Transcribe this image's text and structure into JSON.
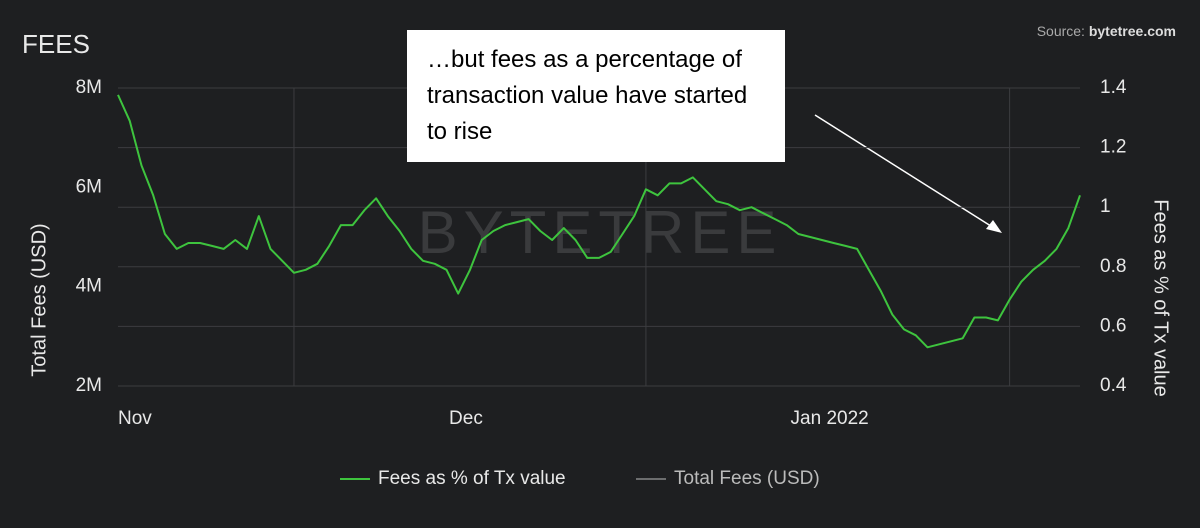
{
  "chart_data": {
    "type": "line",
    "title": "FEES",
    "source_label": "Source:",
    "source_site": "bytetree.com",
    "watermark": "BYTETREE",
    "annotation": "…but fees as a percentage of transaction value have started to rise",
    "ylabel": "Total Fees (USD)",
    "y2label": "Fees as % of Tx value",
    "x": [
      0,
      1,
      2,
      3,
      4,
      5,
      6,
      7,
      8,
      9,
      10,
      11,
      12,
      13,
      14,
      15,
      16,
      17,
      18,
      19,
      20,
      21,
      22,
      23,
      24,
      25,
      26,
      27,
      28,
      29,
      30,
      31,
      32,
      33,
      34,
      35,
      36,
      37,
      38,
      39,
      40,
      41,
      42,
      43,
      44,
      45,
      46,
      47,
      48,
      49,
      50,
      51,
      52,
      53,
      54,
      55,
      56,
      57,
      58,
      59,
      60,
      61,
      62,
      63,
      64,
      65,
      66,
      67,
      68,
      69,
      70,
      71,
      72,
      73,
      74,
      75,
      76,
      77,
      78,
      79,
      80,
      81,
      82
    ],
    "xlim": [
      0,
      82
    ],
    "xticks": [
      {
        "value": 0,
        "label": "Nov"
      },
      {
        "value": 15,
        "label": null
      },
      {
        "value": 30,
        "label": "Dec"
      },
      {
        "value": 45,
        "label": null
      },
      {
        "value": 61,
        "label": "Jan 2022"
      },
      {
        "value": 76,
        "label": null
      }
    ],
    "ylim": [
      2000000,
      8000000
    ],
    "yticks": [
      {
        "value": 2000000,
        "label": "2M"
      },
      {
        "value": 4000000,
        "label": "4M"
      },
      {
        "value": 6000000,
        "label": "6M"
      },
      {
        "value": 8000000,
        "label": "8M"
      }
    ],
    "y2lim": [
      0.4,
      1.4
    ],
    "y2ticks": [
      0.4,
      0.6,
      0.8,
      1,
      1.2,
      1.4
    ],
    "grid": true,
    "series": [
      {
        "name": "Fees as % of Tx value",
        "color": "#3ec43e",
        "axis": "y2",
        "values": [
          1.377,
          1.29,
          1.14,
          1.04,
          0.91,
          0.86,
          0.88,
          0.88,
          0.87,
          0.86,
          0.89,
          0.86,
          0.97,
          0.86,
          0.82,
          0.78,
          0.79,
          0.81,
          0.87,
          0.94,
          0.94,
          0.99,
          1.03,
          0.97,
          0.92,
          0.86,
          0.82,
          0.81,
          0.79,
          0.71,
          0.79,
          0.89,
          0.92,
          0.94,
          0.95,
          0.96,
          0.92,
          0.89,
          0.93,
          0.89,
          0.83,
          0.83,
          0.85,
          0.91,
          0.97,
          1.06,
          1.04,
          1.08,
          1.08,
          1.1,
          1.06,
          1.02,
          1.01,
          0.99,
          1,
          0.98,
          0.96,
          0.94,
          0.91,
          0.9,
          0.89,
          0.88,
          0.87,
          0.86,
          0.79,
          0.72,
          0.64,
          0.59,
          0.57,
          0.53,
          0.54,
          0.55,
          0.56,
          0.63,
          0.63,
          0.62,
          0.69,
          0.75,
          0.79,
          0.82,
          0.86,
          0.93,
          1.04
        ]
      },
      {
        "name": "Total Fees (USD)",
        "color": "#bbbbbb",
        "values": [
          null,
          null,
          null,
          null,
          null,
          null,
          null,
          null,
          null,
          null,
          null,
          null,
          null,
          null,
          null,
          null,
          null,
          null,
          null,
          null,
          null,
          null,
          null,
          null,
          null,
          null,
          null,
          null,
          null,
          null,
          null,
          null,
          null,
          null,
          null,
          null,
          null,
          null,
          null,
          null,
          null,
          null,
          null,
          null,
          null,
          null,
          null,
          null,
          null,
          null,
          null,
          null,
          null,
          null,
          null,
          null,
          null,
          null,
          null,
          null,
          null,
          null,
          null,
          null,
          null,
          null,
          null,
          null,
          null,
          null,
          null,
          null,
          null,
          null,
          null,
          null,
          null,
          null,
          null,
          null,
          null,
          null,
          null
        ]
      }
    ]
  }
}
